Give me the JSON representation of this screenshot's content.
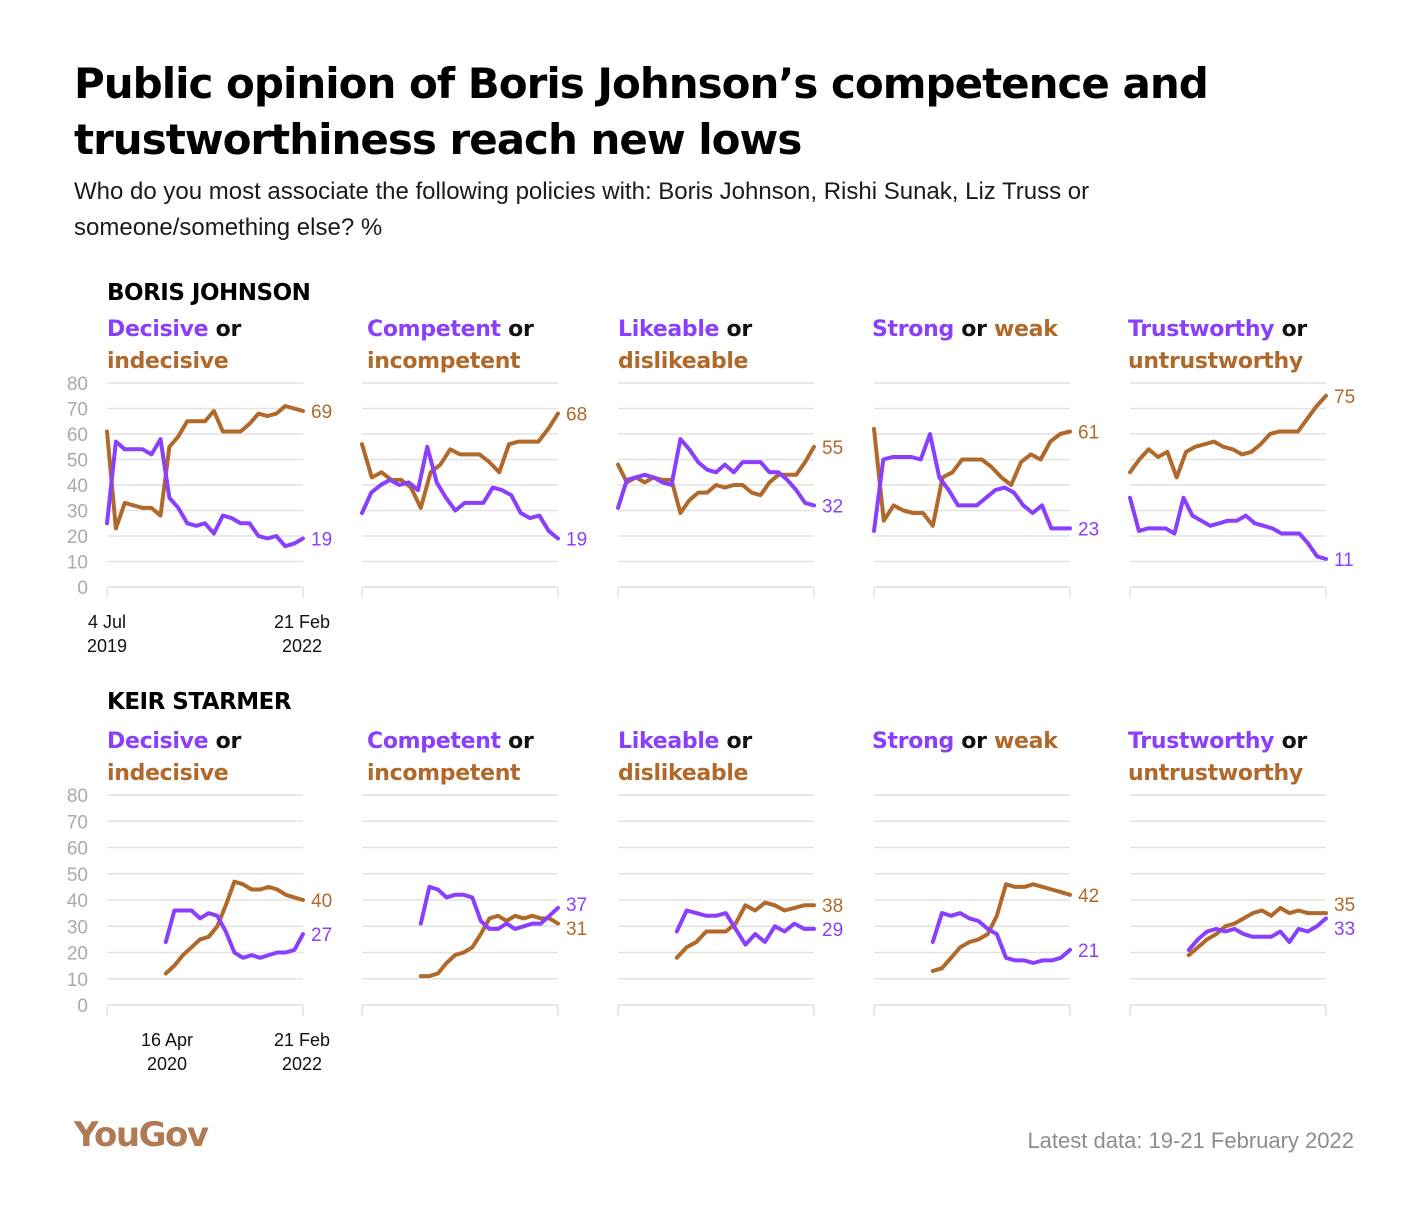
{
  "title": "Public opinion of Boris Johnson’s competence and trustworthiness reach new lows",
  "subtitle": "Who do you most associate the following policies with: Boris Johnson, Rishi Sunak, Liz Truss or someone/something else? %",
  "footnote": "Latest data: 19-21 February 2022",
  "logo": "YouGov",
  "colors": {
    "positive": "#8a3ffc",
    "negative": "#b0692a",
    "grid": "#e2e2e2",
    "axis_text": "#a9a9a9"
  },
  "connector": "or",
  "sections": [
    {
      "label": "BORIS JOHNSON",
      "start_date": [
        "4 Jul",
        "2019"
      ],
      "end_date": [
        "21 Feb",
        "2022"
      ]
    },
    {
      "label": "KEIR STARMER",
      "start_date": [
        "16 Apr",
        "2020"
      ],
      "end_date": [
        "21 Feb",
        "2022"
      ]
    }
  ],
  "panel_titles": [
    {
      "pos": "Decisive",
      "neg": "indecisive"
    },
    {
      "pos": "Competent",
      "neg": "incompetent"
    },
    {
      "pos": "Likeable",
      "neg": "dislikeable"
    },
    {
      "pos": "Strong",
      "neg": "weak"
    },
    {
      "pos": "Trustworthy",
      "neg": "untrustworthy"
    }
  ],
  "chart_data": [
    {
      "type": "line",
      "title": "BORIS JOHNSON",
      "ylim": [
        0,
        80
      ],
      "yticks": [
        0,
        10,
        20,
        30,
        40,
        50,
        60,
        70,
        80
      ],
      "x_range": [
        "4 Jul 2019",
        "21 Feb 2022"
      ],
      "panels": [
        {
          "name": "Decisive or indecisive",
          "positive": [
            25,
            57,
            54,
            54,
            54,
            52,
            58,
            35,
            31,
            25,
            24,
            25,
            21,
            28,
            27,
            25,
            25,
            20,
            19,
            20,
            16,
            17,
            19
          ],
          "negative": [
            61,
            23,
            33,
            32,
            31,
            31,
            28,
            55,
            59,
            65,
            65,
            65,
            69,
            61,
            61,
            61,
            64,
            68,
            67,
            68,
            71,
            70,
            69
          ],
          "last_positive": 19,
          "last_negative": 69
        },
        {
          "name": "Competent or incompetent",
          "positive": [
            29,
            37,
            40,
            42,
            40,
            41,
            38,
            55,
            41,
            35,
            30,
            33,
            33,
            33,
            39,
            38,
            36,
            29,
            27,
            28,
            22,
            19
          ],
          "negative": [
            56,
            43,
            45,
            42,
            42,
            39,
            31,
            45,
            48,
            54,
            52,
            52,
            52,
            49,
            45,
            56,
            57,
            57,
            57,
            62,
            68
          ],
          "last_positive": 19,
          "last_negative": 68
        },
        {
          "name": "Likeable or dislikeable",
          "positive": [
            31,
            42,
            43,
            44,
            43,
            41,
            40,
            58,
            54,
            49,
            46,
            45,
            48,
            45,
            49,
            49,
            49,
            45,
            45,
            42,
            38,
            33,
            32
          ],
          "negative": [
            48,
            41,
            43,
            41,
            43,
            42,
            42,
            29,
            34,
            37,
            37,
            40,
            39,
            40,
            40,
            37,
            36,
            41,
            44,
            44,
            44,
            49,
            55
          ],
          "last_positive": 32,
          "last_negative": 55
        },
        {
          "name": "Strong or weak",
          "positive": [
            22,
            50,
            51,
            51,
            51,
            50,
            60,
            43,
            38,
            32,
            32,
            32,
            35,
            38,
            39,
            37,
            32,
            29,
            32,
            23,
            23,
            23
          ],
          "negative": [
            62,
            26,
            32,
            30,
            29,
            29,
            24,
            43,
            45,
            50,
            50,
            50,
            47,
            43,
            40,
            49,
            52,
            50,
            57,
            60,
            61
          ],
          "last_positive": 23,
          "last_negative": 61
        },
        {
          "name": "Trustworthy or untrustworthy",
          "positive": [
            35,
            22,
            23,
            23,
            23,
            21,
            35,
            28,
            26,
            24,
            25,
            26,
            26,
            28,
            25,
            24,
            23,
            21,
            21,
            21,
            17,
            12,
            11
          ],
          "negative": [
            45,
            50,
            54,
            51,
            53,
            43,
            53,
            55,
            56,
            57,
            55,
            54,
            52,
            53,
            56,
            60,
            61,
            61,
            61,
            66,
            71,
            75
          ],
          "last_positive": 11,
          "last_negative": 75
        }
      ]
    },
    {
      "type": "line",
      "title": "KEIR STARMER",
      "ylim": [
        0,
        80
      ],
      "yticks": [
        0,
        10,
        20,
        30,
        40,
        50,
        60,
        70,
        80
      ],
      "x_range": [
        "16 Apr 2020",
        "21 Feb 2022"
      ],
      "panels": [
        {
          "name": "Decisive or indecisive",
          "positive": [
            24,
            36,
            36,
            36,
            33,
            35,
            34,
            28,
            20,
            18,
            19,
            18,
            19,
            20,
            20,
            21,
            27
          ],
          "negative": [
            12,
            15,
            19,
            22,
            25,
            26,
            30,
            38,
            47,
            46,
            44,
            44,
            45,
            44,
            42,
            41,
            40
          ],
          "last_positive": 27,
          "last_negative": 40
        },
        {
          "name": "Competent or incompetent",
          "positive": [
            31,
            45,
            44,
            41,
            42,
            42,
            41,
            32,
            29,
            29,
            31,
            29,
            30,
            31,
            31,
            34,
            37
          ],
          "negative": [
            11,
            11,
            12,
            16,
            19,
            20,
            22,
            27,
            33,
            34,
            32,
            34,
            33,
            34,
            33,
            33,
            31
          ],
          "last_positive": 37,
          "last_negative": 31
        },
        {
          "name": "Likeable or dislikeable",
          "positive": [
            28,
            36,
            35,
            34,
            34,
            35,
            29,
            23,
            27,
            24,
            30,
            28,
            31,
            29,
            29
          ],
          "negative": [
            18,
            22,
            24,
            28,
            28,
            28,
            31,
            38,
            36,
            39,
            38,
            36,
            37,
            38,
            38
          ],
          "last_positive": 29,
          "last_negative": 38
        },
        {
          "name": "Strong or weak",
          "positive": [
            24,
            35,
            34,
            35,
            33,
            32,
            29,
            27,
            18,
            17,
            17,
            16,
            17,
            17,
            18,
            21
          ],
          "negative": [
            13,
            14,
            18,
            22,
            24,
            25,
            27,
            34,
            46,
            45,
            45,
            46,
            45,
            44,
            43,
            42
          ],
          "last_positive": 21,
          "last_negative": 42
        },
        {
          "name": "Trustworthy or untrustworthy",
          "positive": [
            21,
            25,
            28,
            29,
            28,
            29,
            27,
            26,
            26,
            26,
            28,
            24,
            29,
            28,
            30,
            33
          ],
          "negative": [
            19,
            22,
            25,
            27,
            30,
            31,
            33,
            35,
            36,
            34,
            37,
            35,
            36,
            35,
            35,
            35
          ],
          "last_positive": 33,
          "last_negative": 35
        }
      ]
    }
  ]
}
